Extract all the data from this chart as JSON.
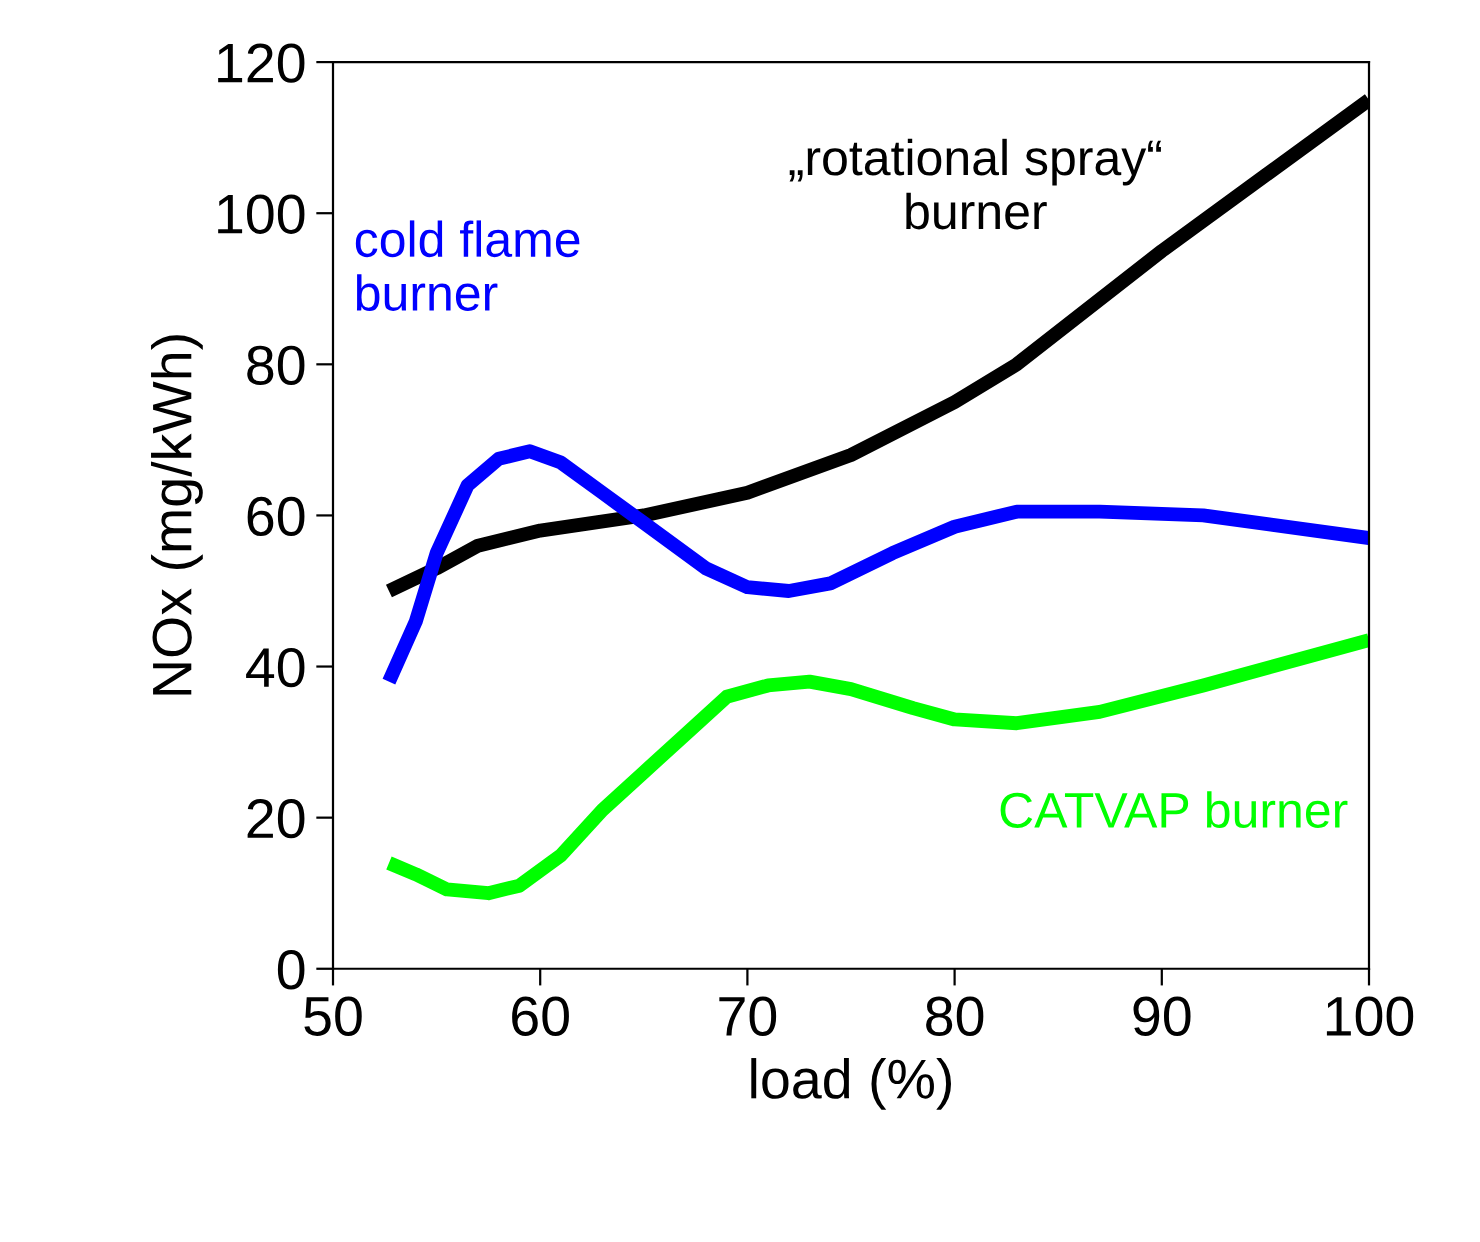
{
  "chart_data": {
    "type": "line",
    "xlabel": "load (%)",
    "ylabel": "NOx (mg/kWh)",
    "xlim": [
      50,
      100
    ],
    "xticks": [
      50,
      60,
      70,
      80,
      90,
      100
    ],
    "ylim": [
      0,
      120
    ],
    "yticks": [
      0,
      20,
      40,
      60,
      80,
      100,
      120
    ],
    "grid": false,
    "legend": false,
    "line_style": "solid",
    "marker": "none",
    "series": [
      {
        "name": "„rotational spray“\nburner",
        "color": "#000000",
        "x": [
          52.7,
          55,
          57,
          60,
          65,
          70,
          75,
          80,
          83,
          90,
          95,
          100
        ],
        "values": [
          50,
          53,
          56,
          58,
          60,
          63,
          68,
          75,
          80,
          95,
          105,
          115
        ]
      },
      {
        "name": "cold flame\nburner",
        "color": "#0000ff",
        "x": [
          52.7,
          54,
          55,
          56.5,
          58,
          59.5,
          61,
          63,
          65,
          68,
          70,
          72,
          74,
          77,
          80,
          83,
          87,
          92,
          100
        ],
        "values": [
          38,
          46,
          55,
          64,
          67.5,
          68.5,
          67,
          63,
          59,
          53,
          50.5,
          50,
          51,
          55,
          58.5,
          60.5,
          60.5,
          60,
          57
        ]
      },
      {
        "name": "CATVAP burner",
        "color": "#00ff00",
        "x": [
          52.7,
          54,
          55.5,
          57.5,
          59,
          61,
          63,
          65,
          67,
          69,
          71,
          73,
          75,
          78,
          80,
          83,
          87,
          92,
          100
        ],
        "values": [
          14,
          12.5,
          10.5,
          10,
          11,
          15,
          21,
          26,
          31,
          36,
          37.5,
          38,
          37,
          34.5,
          33,
          32.5,
          34,
          37.5,
          43.5
        ]
      }
    ]
  }
}
